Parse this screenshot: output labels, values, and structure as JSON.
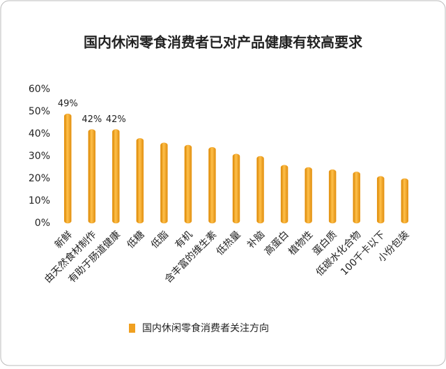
{
  "chart_data": {
    "type": "bar",
    "title": "国内休闲零食消费者已对产品健康有较高要求",
    "categories": [
      "新鲜",
      "由天然食材制作",
      "有助于肠道健康",
      "低糖",
      "低脂",
      "有机",
      "含丰富的维生素",
      "低热量",
      "补脑",
      "高蛋白",
      "植物性",
      "蛋白质",
      "低碳水化合物",
      "100千卡以下",
      "小份包装"
    ],
    "series": [
      {
        "name": "国内休闲零食消费者关注方向",
        "color": "#f0a020",
        "values": [
          49,
          42,
          42,
          38,
          36,
          35,
          34,
          31,
          30,
          26,
          25,
          24,
          23,
          21,
          20
        ],
        "value_labels": [
          "49%",
          "42%",
          "42%",
          null,
          null,
          null,
          null,
          null,
          null,
          null,
          null,
          null,
          null,
          null,
          null
        ]
      }
    ],
    "ylim": [
      0,
      60
    ],
    "yticks": [
      {
        "value": 0,
        "label": "0%"
      },
      {
        "value": 10,
        "label": "10%"
      },
      {
        "value": 20,
        "label": "20%"
      },
      {
        "value": 30,
        "label": "30%"
      },
      {
        "value": 40,
        "label": "40%"
      },
      {
        "value": 50,
        "label": "50%"
      },
      {
        "value": 60,
        "label": "60%"
      }
    ],
    "grid": false,
    "legend": "bottom"
  }
}
